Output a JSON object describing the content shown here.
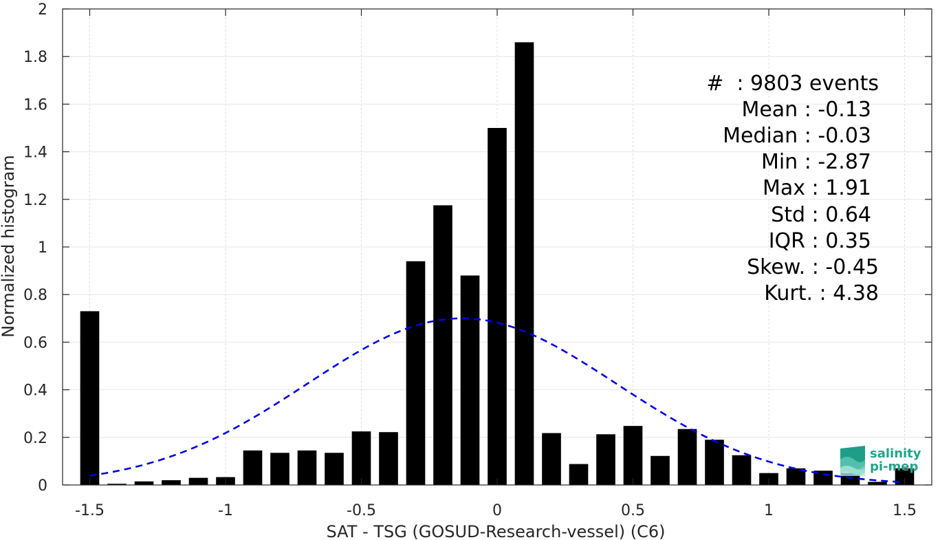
{
  "chart_data": {
    "type": "bar",
    "xlabel": "SAT - TSG (GOSUD-Research-vessel) (C6)",
    "ylabel": "Normalized histogram",
    "xlim": [
      -1.6,
      1.6
    ],
    "ylim": [
      0,
      2
    ],
    "grid": true,
    "x_ticks": [
      -1.5,
      -1,
      -0.5,
      0,
      0.5,
      1,
      1.5
    ],
    "x_tick_labels": [
      "-1.5",
      "-1",
      "-0.5",
      "0",
      "0.5",
      "1",
      "1.5"
    ],
    "y_ticks": [
      0,
      0.2,
      0.4,
      0.6,
      0.8,
      1,
      1.2,
      1.4,
      1.6,
      1.8,
      2
    ],
    "y_tick_labels": [
      "0",
      "0.2",
      "0.4",
      "0.6",
      "0.8",
      "1",
      "1.2",
      "1.4",
      "1.6",
      "1.8",
      "2"
    ],
    "bar_width": 0.07,
    "bar_color": "#000000",
    "bins": [
      -1.5,
      -1.4,
      -1.3,
      -1.2,
      -1.1,
      -1.0,
      -0.9,
      -0.8,
      -0.7,
      -0.6,
      -0.5,
      -0.4,
      -0.3,
      -0.2,
      -0.1,
      0.0,
      0.1,
      0.2,
      0.3,
      0.4,
      0.5,
      0.6,
      0.7,
      0.8,
      0.9,
      1.0,
      1.1,
      1.2,
      1.3,
      1.4,
      1.5
    ],
    "values": [
      0.73,
      0.005,
      0.015,
      0.02,
      0.03,
      0.033,
      0.145,
      0.135,
      0.145,
      0.135,
      0.225,
      0.222,
      0.94,
      1.175,
      0.88,
      1.5,
      1.86,
      0.218,
      0.088,
      0.213,
      0.248,
      0.122,
      0.235,
      0.19,
      0.125,
      0.05,
      0.07,
      0.06,
      0.05,
      0.013,
      0.07
    ],
    "gaussian_fit": {
      "mean": -0.13,
      "std": 0.57,
      "amplitude": 0.7,
      "x_range": [
        -1.5,
        1.5
      ],
      "color": "#0000e6",
      "style": "dashed"
    },
    "stats": [
      "#  : 9803 events",
      "Mean : -0.13",
      "Median : -0.03",
      "Min : -2.87",
      "Max : 1.91",
      "Std : 0.64",
      "IQR : 0.35",
      "Skew. : -0.45",
      "Kurt. : 4.38"
    ]
  },
  "logo": {
    "line1": "salinity",
    "line2": "pi-mep"
  }
}
